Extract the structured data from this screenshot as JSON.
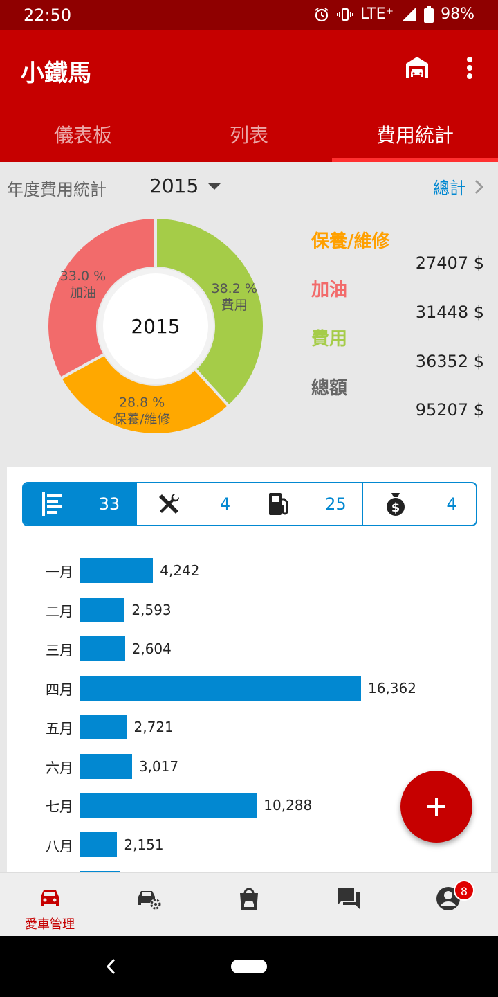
{
  "status": {
    "time": "22:50",
    "network": "LTE⁺",
    "battery": "98%"
  },
  "app": {
    "title": "小鐵馬"
  },
  "tabs": [
    {
      "label": "儀表板"
    },
    {
      "label": "列表"
    },
    {
      "label": "費用統計"
    }
  ],
  "summary": {
    "year_label": "年度費用統計",
    "year": "2015",
    "total_link": "總計",
    "donut_center": "2015",
    "slices": [
      {
        "name": "費用",
        "percent": 38.2,
        "percent_text": "38.2 %",
        "color": "#a5cc48"
      },
      {
        "name": "保養/維修",
        "percent": 28.8,
        "percent_text": "28.8 %",
        "color": "#ffa800"
      },
      {
        "name": "加油",
        "percent": 33.0,
        "percent_text": "33.0 %",
        "color": "#f26b6b"
      }
    ],
    "legend": [
      {
        "label": "保養/維修",
        "value": "27407 $",
        "color": "#ffa000"
      },
      {
        "label": "加油",
        "value": "31448 $",
        "color": "#f26b6b"
      },
      {
        "label": "費用",
        "value": "36352 $",
        "color": "#a5cc48"
      },
      {
        "label": "總額",
        "value": "95207 $",
        "color": "#666666"
      }
    ]
  },
  "filters": [
    {
      "icon": "list-icon",
      "count": "33",
      "active": true
    },
    {
      "icon": "tools-icon",
      "count": "4",
      "active": false
    },
    {
      "icon": "fuel-pump-icon",
      "count": "25",
      "active": false
    },
    {
      "icon": "money-bag-icon",
      "count": "4",
      "active": false
    }
  ],
  "chart_data": {
    "type": "bar",
    "orientation": "horizontal",
    "categories": [
      "一月",
      "二月",
      "三月",
      "四月",
      "五月",
      "六月",
      "七月",
      "八月"
    ],
    "values": [
      4242,
      2593,
      2604,
      16362,
      2721,
      3017,
      10288,
      2151
    ],
    "value_labels": [
      "4,242",
      "2,593",
      "2,604",
      "16,362",
      "2,721",
      "3,017",
      "10,288",
      "2,151"
    ],
    "color": "#0288d1"
  },
  "bottom_nav": [
    {
      "icon": "car-icon",
      "label": "愛車管理",
      "active": true
    },
    {
      "icon": "car-settings-icon",
      "label": "",
      "active": false
    },
    {
      "icon": "shopping-bag-car-icon",
      "label": "",
      "active": false
    },
    {
      "icon": "chat-icon",
      "label": "",
      "active": false
    },
    {
      "icon": "account-icon",
      "label": "",
      "badge": "8",
      "active": false
    }
  ],
  "colors": {
    "primary": "#c60000",
    "accent": "#0288d1",
    "statusbar": "#8f0000"
  }
}
